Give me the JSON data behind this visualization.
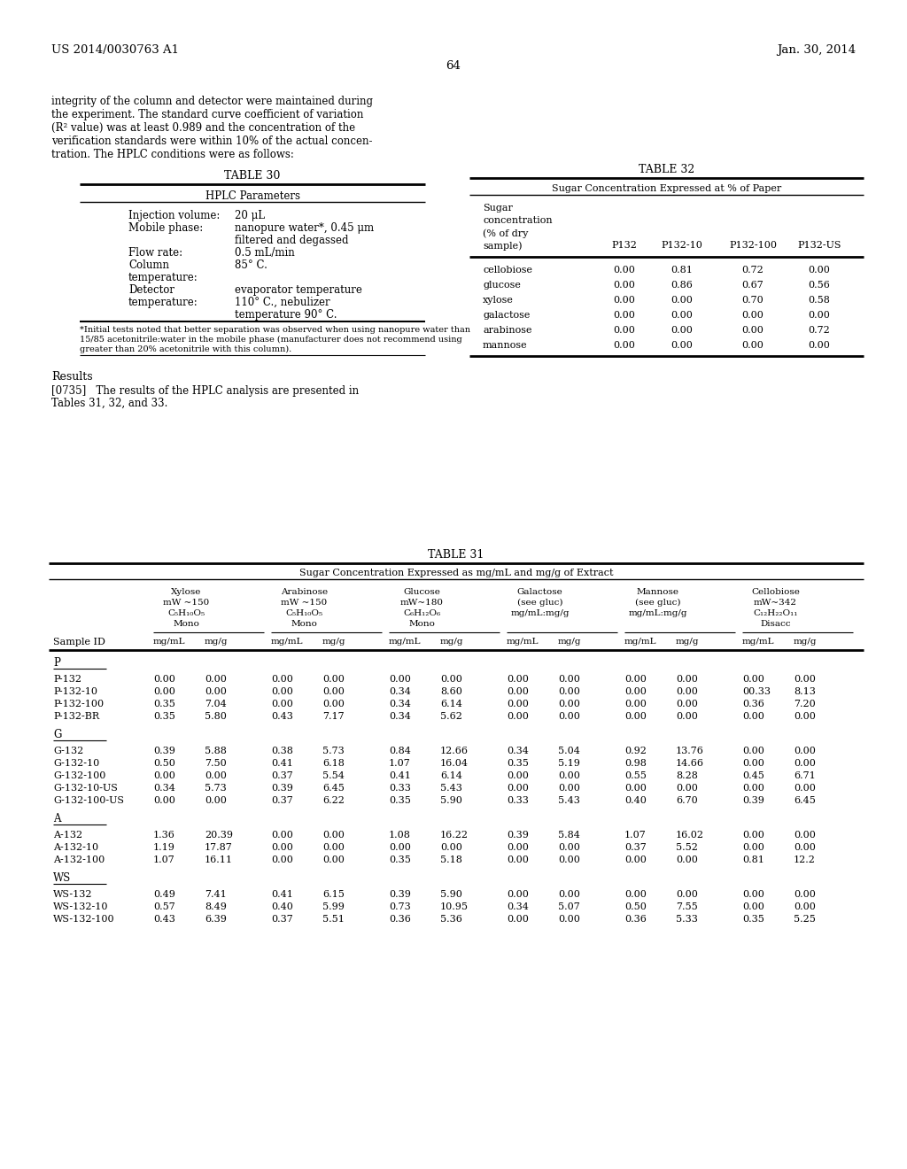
{
  "header_left": "US 2014/0030763 A1",
  "header_right": "Jan. 30, 2014",
  "page_number": "64",
  "bg": "#ffffff",
  "intro_text": [
    "integrity of the column and detector were maintained during",
    "the experiment. The standard curve coefficient of variation",
    "(R² value) was at least 0.989 and the concentration of the",
    "verification standards were within 10% of the actual concen-",
    "tration. The HPLC conditions were as follows:"
  ],
  "table30_title": "TABLE 30",
  "table30_subtitle": "HPLC Parameters",
  "table30_rows": [
    [
      "Injection volume:",
      "20 μL"
    ],
    [
      "Mobile phase:",
      "nanopure water*, 0.45 μm"
    ],
    [
      "",
      "filtered and degassed"
    ],
    [
      "Flow rate:",
      "0.5 mL/min"
    ],
    [
      "Column",
      "85° C."
    ],
    [
      "temperature:",
      ""
    ],
    [
      "Detector",
      "evaporator temperature"
    ],
    [
      "temperature:",
      "110° C., nebulizer"
    ],
    [
      "",
      "temperature 90° C."
    ]
  ],
  "table30_footnote": [
    "*Initial tests noted that better separation was observed when using nanopure water than",
    "15/85 acetonitrile:water in the mobile phase (manufacturer does not recommend using",
    "greater than 20% acetonitrile with this column)."
  ],
  "results_heading": "Results",
  "results_para_line1": "[0735]   The results of the HPLC analysis are presented in",
  "results_para_line2": "Tables 31, 32, and 33.",
  "table32_title": "TABLE 32",
  "table32_subtitle": "Sugar Concentration Expressed at % of Paper",
  "table32_header": [
    "Sugar",
    "concentration",
    "(% of dry",
    "sample)"
  ],
  "table32_cols": [
    "P132",
    "P132-10",
    "P132-100",
    "P132-US"
  ],
  "table32_rows": [
    [
      "cellobiose",
      "0.00",
      "0.81",
      "0.72",
      "0.00"
    ],
    [
      "glucose",
      "0.00",
      "0.86",
      "0.67",
      "0.56"
    ],
    [
      "xylose",
      "0.00",
      "0.00",
      "0.70",
      "0.58"
    ],
    [
      "galactose",
      "0.00",
      "0.00",
      "0.00",
      "0.00"
    ],
    [
      "arabinose",
      "0.00",
      "0.00",
      "0.00",
      "0.72"
    ],
    [
      "mannose",
      "0.00",
      "0.00",
      "0.00",
      "0.00"
    ]
  ],
  "table31_title": "TABLE 31",
  "table31_subtitle": "Sugar Concentration Expressed as mg/mL and mg/g of Extract",
  "table31_group_headers": [
    [
      "Xylose",
      "mW ~150",
      "C₅H₁₀O₅",
      "Mono"
    ],
    [
      "Arabinose",
      "mW ~150",
      "C₅H₁₀O₅",
      "Mono"
    ],
    [
      "Glucose",
      "mW~180",
      "C₆H₁₂O₆",
      "Mono"
    ],
    [
      "Galactose",
      "(see gluc)",
      "mg/mL:mg/g",
      ""
    ],
    [
      "Mannose",
      "(see gluc)",
      "mg/mL:mg/g",
      ""
    ],
    [
      "Cellobiose",
      "mW~342",
      "C₁₂H₂₂O₁₁",
      "Disacc"
    ]
  ],
  "table31_groups": [
    {
      "group": "P",
      "rows": [
        [
          "P-132",
          "0.00",
          "0.00",
          "0.00",
          "0.00",
          "0.00",
          "0.00",
          "0.00",
          "0.00",
          "0.00",
          "0.00",
          "0.00",
          "0.00"
        ],
        [
          "P-132-10",
          "0.00",
          "0.00",
          "0.00",
          "0.00",
          "0.34",
          "8.60",
          "0.00",
          "0.00",
          "0.00",
          "0.00",
          "00.33",
          "8.13"
        ],
        [
          "P-132-100",
          "0.35",
          "7.04",
          "0.00",
          "0.00",
          "0.34",
          "6.14",
          "0.00",
          "0.00",
          "0.00",
          "0.00",
          "0.36",
          "7.20"
        ],
        [
          "P-132-BR",
          "0.35",
          "5.80",
          "0.43",
          "7.17",
          "0.34",
          "5.62",
          "0.00",
          "0.00",
          "0.00",
          "0.00",
          "0.00",
          "0.00"
        ]
      ]
    },
    {
      "group": "G",
      "rows": [
        [
          "G-132",
          "0.39",
          "5.88",
          "0.38",
          "5.73",
          "0.84",
          "12.66",
          "0.34",
          "5.04",
          "0.92",
          "13.76",
          "0.00",
          "0.00"
        ],
        [
          "G-132-10",
          "0.50",
          "7.50",
          "0.41",
          "6.18",
          "1.07",
          "16.04",
          "0.35",
          "5.19",
          "0.98",
          "14.66",
          "0.00",
          "0.00"
        ],
        [
          "G-132-100",
          "0.00",
          "0.00",
          "0.37",
          "5.54",
          "0.41",
          "6.14",
          "0.00",
          "0.00",
          "0.55",
          "8.28",
          "0.45",
          "6.71"
        ],
        [
          "G-132-10-US",
          "0.34",
          "5.73",
          "0.39",
          "6.45",
          "0.33",
          "5.43",
          "0.00",
          "0.00",
          "0.00",
          "0.00",
          "0.00",
          "0.00"
        ],
        [
          "G-132-100-US",
          "0.00",
          "0.00",
          "0.37",
          "6.22",
          "0.35",
          "5.90",
          "0.33",
          "5.43",
          "0.40",
          "6.70",
          "0.39",
          "6.45"
        ]
      ]
    },
    {
      "group": "A",
      "rows": [
        [
          "A-132",
          "1.36",
          "20.39",
          "0.00",
          "0.00",
          "1.08",
          "16.22",
          "0.39",
          "5.84",
          "1.07",
          "16.02",
          "0.00",
          "0.00"
        ],
        [
          "A-132-10",
          "1.19",
          "17.87",
          "0.00",
          "0.00",
          "0.00",
          "0.00",
          "0.00",
          "0.00",
          "0.37",
          "5.52",
          "0.00",
          "0.00"
        ],
        [
          "A-132-100",
          "1.07",
          "16.11",
          "0.00",
          "0.00",
          "0.35",
          "5.18",
          "0.00",
          "0.00",
          "0.00",
          "0.00",
          "0.81",
          "12.2"
        ]
      ]
    },
    {
      "group": "WS",
      "rows": [
        [
          "WS-132",
          "0.49",
          "7.41",
          "0.41",
          "6.15",
          "0.39",
          "5.90",
          "0.00",
          "0.00",
          "0.00",
          "0.00",
          "0.00",
          "0.00"
        ],
        [
          "WS-132-10",
          "0.57",
          "8.49",
          "0.40",
          "5.99",
          "0.73",
          "10.95",
          "0.34",
          "5.07",
          "0.50",
          "7.55",
          "0.00",
          "0.00"
        ],
        [
          "WS-132-100",
          "0.43",
          "6.39",
          "0.37",
          "5.51",
          "0.36",
          "5.36",
          "0.00",
          "0.00",
          "0.36",
          "5.33",
          "0.35",
          "5.25"
        ]
      ]
    }
  ]
}
